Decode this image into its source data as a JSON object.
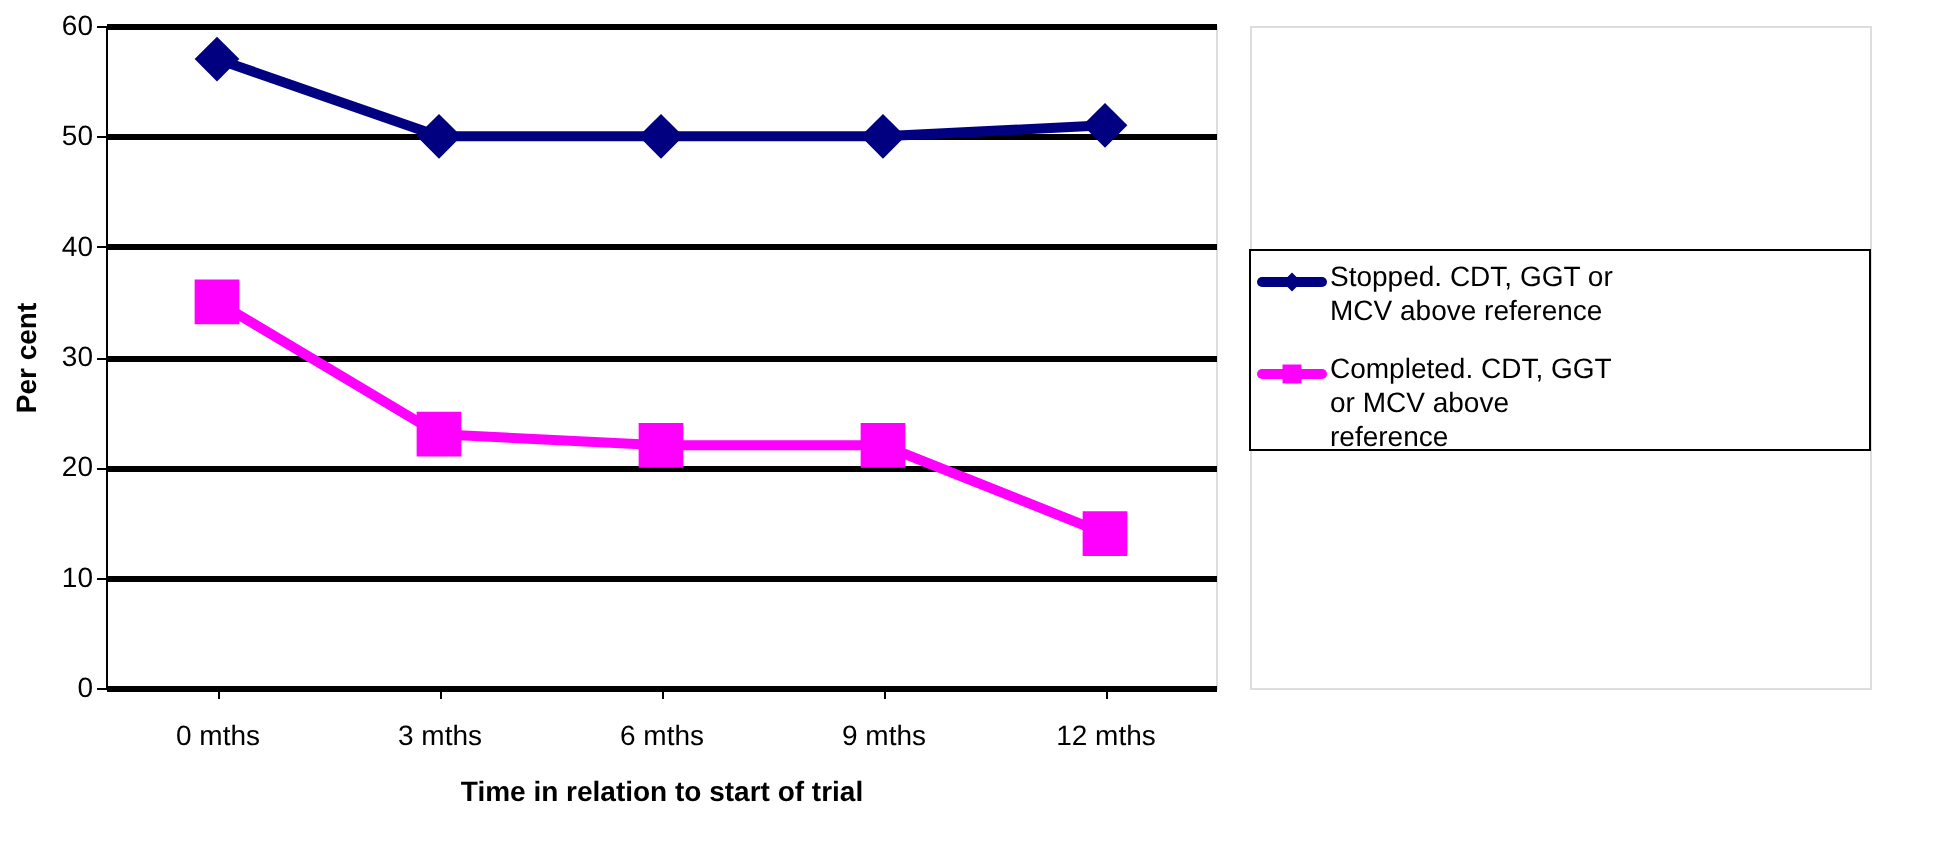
{
  "chart_data": {
    "type": "line",
    "xlabel": "Time in relation to start of trial",
    "ylabel": "Per cent",
    "categories": [
      "0 mths",
      "3 mths",
      "6 mths",
      "9 mths",
      "12 mths"
    ],
    "series": [
      {
        "name": "Stopped. CDT, GGT or MCV above reference",
        "color": "#000080",
        "marker": "diamond",
        "values": [
          57,
          50,
          50,
          50,
          51
        ]
      },
      {
        "name": "Completed. CDT, GGT or MCV above reference",
        "color": "#ff00ff",
        "marker": "square",
        "values": [
          35,
          23,
          22,
          22,
          14
        ]
      }
    ],
    "ylim": [
      0,
      60
    ],
    "yticks": [
      0,
      10,
      20,
      30,
      40,
      50,
      60
    ],
    "grid": "y",
    "legend": "right",
    "line_style": "solid"
  }
}
